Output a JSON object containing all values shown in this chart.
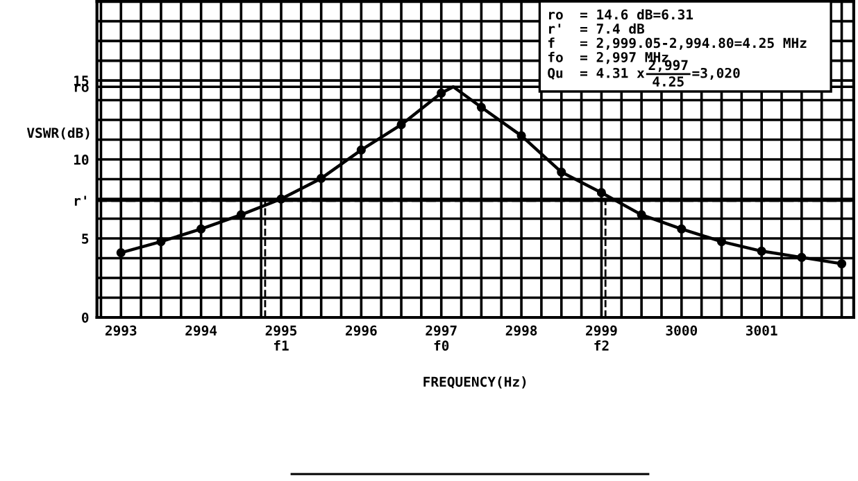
{
  "chart_data": {
    "type": "line",
    "xlabel": "FREQUENCY(Hz)",
    "ylabel": "VSWR(dB)",
    "xlim": [
      2992.7,
      3002.15
    ],
    "ylim": [
      0,
      20
    ],
    "xticks": [
      {
        "value": 2992.75,
        "label": null
      },
      {
        "value": 2993,
        "label": "2993"
      },
      {
        "value": 2993.25,
        "label": null
      },
      {
        "value": 2993.5,
        "label": null
      },
      {
        "value": 2993.75,
        "label": null
      },
      {
        "value": 2994,
        "label": "2994"
      },
      {
        "value": 2994.25,
        "label": null
      },
      {
        "value": 2994.5,
        "label": null
      },
      {
        "value": 2994.75,
        "label": null
      },
      {
        "value": 2995,
        "label": "2995\nf1"
      },
      {
        "value": 2995.25,
        "label": null
      },
      {
        "value": 2995.5,
        "label": null
      },
      {
        "value": 2995.75,
        "label": null
      },
      {
        "value": 2996,
        "label": "2996"
      },
      {
        "value": 2996.25,
        "label": null
      },
      {
        "value": 2996.5,
        "label": null
      },
      {
        "value": 2996.75,
        "label": null
      },
      {
        "value": 2997,
        "label": "2997\nf0"
      },
      {
        "value": 2997.25,
        "label": null
      },
      {
        "value": 2997.5,
        "label": null
      },
      {
        "value": 2997.75,
        "label": null
      },
      {
        "value": 2998,
        "label": "2998"
      },
      {
        "value": 2998.25,
        "label": null
      },
      {
        "value": 2998.5,
        "label": null
      },
      {
        "value": 2998.75,
        "label": null
      },
      {
        "value": 2999,
        "label": "2999\nf2"
      },
      {
        "value": 2999.25,
        "label": null
      },
      {
        "value": 2999.5,
        "label": null
      },
      {
        "value": 2999.75,
        "label": null
      },
      {
        "value": 3000,
        "label": "3000"
      },
      {
        "value": 3000.25,
        "label": null
      },
      {
        "value": 3000.5,
        "label": null
      },
      {
        "value": 3000.75,
        "label": null
      },
      {
        "value": 3001,
        "label": "3001"
      },
      {
        "value": 3001.25,
        "label": null
      },
      {
        "value": 3001.5,
        "label": null
      },
      {
        "value": 3001.75,
        "label": null
      },
      {
        "value": 3002,
        "label": null
      }
    ],
    "yticks": [
      0,
      {
        "value": 1.25,
        "label": null
      },
      {
        "value": 2.5,
        "label": null
      },
      {
        "value": 3.75,
        "label": null
      },
      5,
      {
        "value": 6.25,
        "label": null
      },
      {
        "value": 7.4,
        "label": "r'"
      },
      {
        "value": 7.5,
        "label": null
      },
      {
        "value": 8.75,
        "label": null
      },
      10,
      {
        "value": 11.25,
        "label": null
      },
      {
        "value": 12.5,
        "label": null
      },
      {
        "value": 13.75,
        "label": null
      },
      {
        "value": 14.6,
        "label": "ro"
      },
      15,
      {
        "value": 16.25,
        "label": null
      },
      {
        "value": 17.5,
        "label": null
      },
      {
        "value": 18.75,
        "label": null
      },
      {
        "value": 20,
        "label": null
      }
    ],
    "grid": true,
    "series": [
      {
        "color": "#000000",
        "marker": "none",
        "line_style": "solid",
        "x": [
          2993,
          2993.5,
          2994,
          2994.5,
          2995,
          2995.5,
          2996,
          2996.5,
          2997,
          2997.15,
          2997.5,
          2998,
          2998.5,
          2999,
          2999.5,
          3000,
          3000.5,
          3001,
          3001.5,
          3002
        ],
        "values": [
          4.1,
          4.8,
          5.6,
          6.5,
          7.5,
          8.8,
          10.6,
          12.2,
          14.2,
          14.6,
          13.3,
          11.5,
          9.2,
          7.9,
          6.5,
          5.6,
          4.8,
          4.2,
          3.8,
          3.4
        ]
      },
      {
        "type": "scatter",
        "color": "#000000",
        "marker": "circle",
        "x": [
          2993,
          2993.5,
          2994,
          2994.5,
          2995,
          2995.5,
          2996,
          2996.5,
          2997,
          2997.5,
          2998,
          2998.5,
          2999,
          2999.5,
          3000,
          3000.5,
          3001,
          3001.5,
          3002
        ],
        "values": [
          4.1,
          4.8,
          5.6,
          6.5,
          7.5,
          8.8,
          10.6,
          12.2,
          14.2,
          13.3,
          11.5,
          9.2,
          7.9,
          6.5,
          5.6,
          4.8,
          4.2,
          3.8,
          3.4
        ]
      }
    ],
    "ref_lines": [
      {
        "axis": "y",
        "value": 7.4,
        "line_style": "dashed",
        "color": "#000000"
      },
      {
        "axis": "x",
        "value": 2994.8,
        "line_style": "dashed",
        "color": "#000000"
      },
      {
        "axis": "x",
        "value": 2999.05,
        "line_style": "dashed",
        "color": "#000000"
      }
    ],
    "annotations": [
      "ro  = 14.6 dB=6.31",
      "r'  = 7.4 dB",
      "f   = 2,999.05-2,994.80=4.25 MHz",
      "fo  = 2,997 MHz",
      "Qu  = 4.31 x",
      "2,997",
      "4.25",
      "=3,020"
    ]
  }
}
